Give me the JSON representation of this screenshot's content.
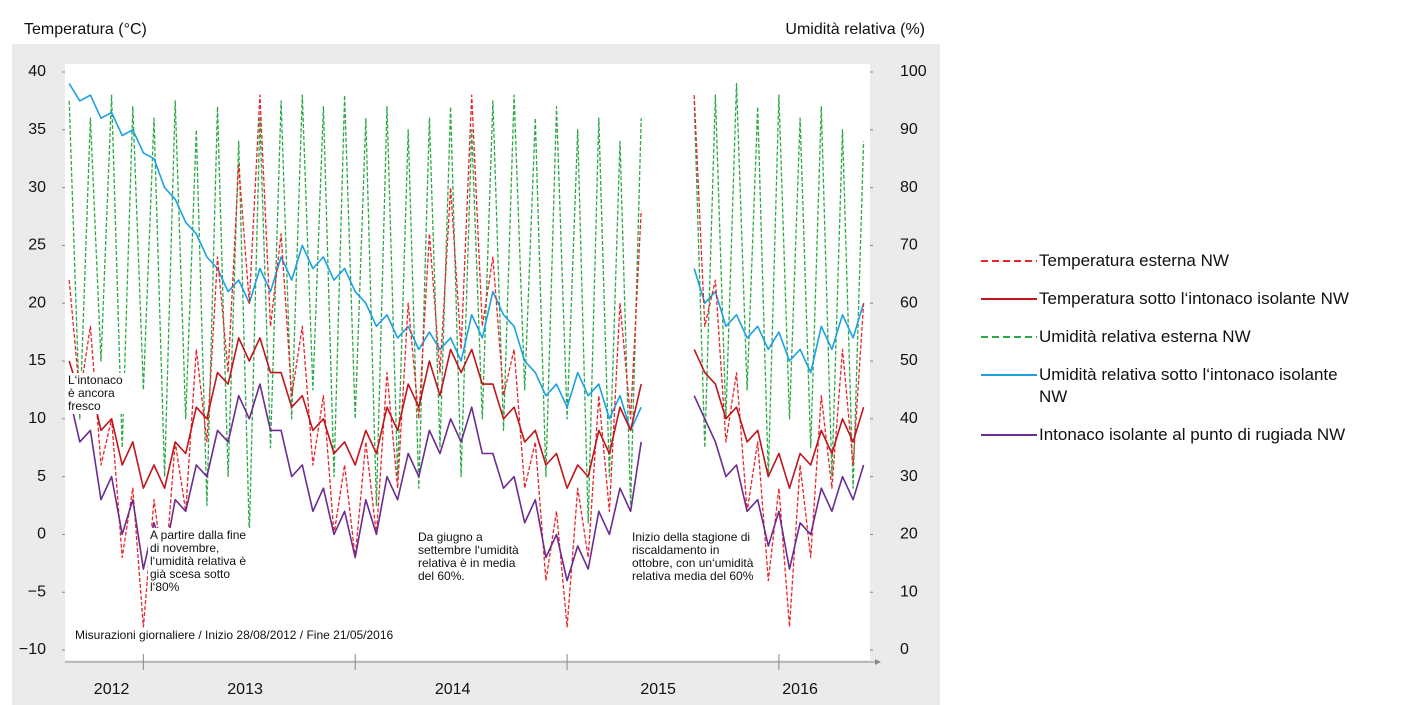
{
  "chart_data": {
    "type": "line",
    "y_label": "Temperatura (°C)",
    "y2_label": "Umidità relativa (%)",
    "note": "Misurazioni giornaliere / Inizio 28/08/2012 / Fine 21/05/2016",
    "annotations": [
      "L‘intonaco è ancora fresco",
      "A partire dalla fine di novembre, l‘umidità relativa è già scesa sotto l‘80%",
      "Da giugno a settembre l‘umidità relativa è in media del 60%.",
      "Inizio della stagione di riscaldamento in ottobre, con un‘umidità relativa media del 60%"
    ],
    "xlim": [
      2012.63,
      2016.43
    ],
    "xticks": [
      {
        "value": 2012.85,
        "label": "2012"
      },
      {
        "value": 2013.48,
        "label": "2013"
      },
      {
        "value": 2014.46,
        "label": "2014"
      },
      {
        "value": 2015.43,
        "label": "2015"
      },
      {
        "value": 2016.1,
        "label": "2016"
      }
    ],
    "xticks_minor": [
      2013,
      2014,
      2015,
      2016
    ],
    "ylim": [
      -10,
      40
    ],
    "yticks": [
      40,
      35,
      30,
      25,
      20,
      15,
      10,
      5,
      0,
      {
        "value": -5,
        "label": "−5"
      },
      {
        "value": -10,
        "label": "−10"
      }
    ],
    "y2lim": [
      0,
      100
    ],
    "y2ticks": [
      100,
      90,
      80,
      70,
      60,
      50,
      40,
      30,
      20,
      10,
      0
    ],
    "legend": "right",
    "x": [
      2012.65,
      2012.7,
      2012.75,
      2012.8,
      2012.85,
      2012.9,
      2012.95,
      2013.0,
      2013.05,
      2013.1,
      2013.15,
      2013.2,
      2013.25,
      2013.3,
      2013.35,
      2013.4,
      2013.45,
      2013.5,
      2013.55,
      2013.6,
      2013.65,
      2013.7,
      2013.75,
      2013.8,
      2013.85,
      2013.9,
      2013.95,
      2014.0,
      2014.05,
      2014.1,
      2014.15,
      2014.2,
      2014.25,
      2014.3,
      2014.35,
      2014.4,
      2014.45,
      2014.5,
      2014.55,
      2014.6,
      2014.65,
      2014.7,
      2014.75,
      2014.8,
      2014.85,
      2014.9,
      2014.95,
      2015.0,
      2015.05,
      2015.1,
      2015.15,
      2015.2,
      2015.25,
      2015.3,
      2015.35,
      2015.4,
      2015.45,
      2015.5,
      2015.55,
      2015.6,
      2015.65,
      2015.7,
      2015.75,
      2015.8,
      2015.85,
      2015.9,
      2015.95,
      2016.0,
      2016.05,
      2016.1,
      2016.15,
      2016.2,
      2016.25,
      2016.3,
      2016.35,
      2016.4
    ],
    "series": [
      {
        "name": "Umidità relativa esterna NW",
        "color": "#2ca845",
        "style": "dashed",
        "axis": "y2",
        "values": [
          95,
          40,
          92,
          50,
          96,
          35,
          94,
          45,
          92,
          30,
          95,
          40,
          90,
          25,
          94,
          30,
          88,
          20,
          92,
          35,
          95,
          40,
          96,
          45,
          94,
          30,
          96,
          40,
          92,
          25,
          94,
          30,
          90,
          28,
          92,
          35,
          94,
          30,
          90,
          40,
          95,
          38,
          96,
          45,
          92,
          30,
          94,
          40,
          90,
          22,
          92,
          30,
          88,
          25,
          92,
          null,
          null,
          null,
          null,
          95,
          35,
          96,
          40,
          98,
          45,
          94,
          30,
          96,
          40,
          92,
          35,
          94,
          30,
          90,
          28,
          88
        ]
      },
      {
        "name": "Umidità relativa sotto l‘intonaco isolante NW",
        "color": "#1ba1e2",
        "style": "solid",
        "axis": "y2",
        "values": [
          98,
          95,
          96,
          92,
          93,
          89,
          90,
          86,
          85,
          80,
          78,
          74,
          72,
          68,
          66,
          62,
          64,
          60,
          66,
          62,
          68,
          64,
          70,
          66,
          68,
          64,
          66,
          62,
          60,
          56,
          58,
          54,
          56,
          52,
          55,
          52,
          54,
          50,
          58,
          54,
          62,
          58,
          56,
          50,
          48,
          44,
          46,
          42,
          48,
          44,
          46,
          40,
          44,
          38,
          42,
          null,
          null,
          null,
          null,
          66,
          60,
          62,
          56,
          58,
          54,
          56,
          52,
          55,
          50,
          52,
          48,
          56,
          52,
          58,
          54,
          60
        ]
      },
      {
        "name": "Temperatura esterna NW",
        "color": "#e8262a",
        "style": "dashed",
        "values": [
          22,
          12,
          18,
          6,
          10,
          -2,
          4,
          -8,
          3,
          -4,
          8,
          2,
          16,
          8,
          24,
          14,
          32,
          20,
          38,
          18,
          26,
          12,
          18,
          6,
          12,
          0,
          6,
          -2,
          8,
          0,
          14,
          4,
          20,
          10,
          26,
          14,
          30,
          16,
          38,
          18,
          24,
          12,
          16,
          4,
          8,
          -4,
          2,
          -8,
          4,
          -2,
          12,
          2,
          20,
          10,
          28,
          null,
          null,
          null,
          null,
          38,
          18,
          22,
          8,
          14,
          2,
          8,
          -4,
          4,
          -8,
          6,
          -2,
          12,
          4,
          16,
          6,
          20
        ]
      },
      {
        "name": "Temperatura sotto l‘intonaco isolante NW",
        "color": "#c0151b",
        "style": "solid",
        "values": [
          15,
          12,
          13,
          9,
          10,
          6,
          8,
          4,
          6,
          4,
          8,
          7,
          11,
          10,
          14,
          13,
          17,
          15,
          17,
          14,
          14,
          11,
          12,
          9,
          10,
          7,
          8,
          6,
          9,
          7,
          11,
          9,
          13,
          11,
          15,
          12,
          16,
          14,
          16,
          13,
          13,
          10,
          11,
          8,
          9,
          6,
          7,
          4,
          6,
          5,
          9,
          7,
          11,
          9,
          13,
          null,
          null,
          null,
          null,
          16,
          14,
          13,
          10,
          11,
          8,
          9,
          5,
          7,
          4,
          7,
          6,
          9,
          7,
          10,
          8,
          11
        ]
      },
      {
        "name": "Intonaco isolante al punto di rugiada NW",
        "color": "#6a2c91",
        "style": "solid",
        "values": [
          12,
          8,
          9,
          3,
          5,
          0,
          3,
          -3,
          1,
          -2,
          3,
          2,
          6,
          5,
          9,
          8,
          12,
          10,
          13,
          9,
          9,
          5,
          6,
          2,
          4,
          0,
          2,
          -2,
          3,
          0,
          5,
          3,
          7,
          5,
          9,
          7,
          10,
          8,
          11,
          7,
          7,
          4,
          5,
          1,
          3,
          -2,
          0,
          -4,
          -1,
          -3,
          2,
          0,
          4,
          2,
          8,
          null,
          null,
          null,
          null,
          12,
          10,
          8,
          5,
          6,
          2,
          3,
          -1,
          2,
          -3,
          1,
          0,
          4,
          2,
          5,
          3,
          6
        ]
      }
    ],
    "legend_order": [
      2,
      3,
      0,
      1,
      4
    ]
  }
}
